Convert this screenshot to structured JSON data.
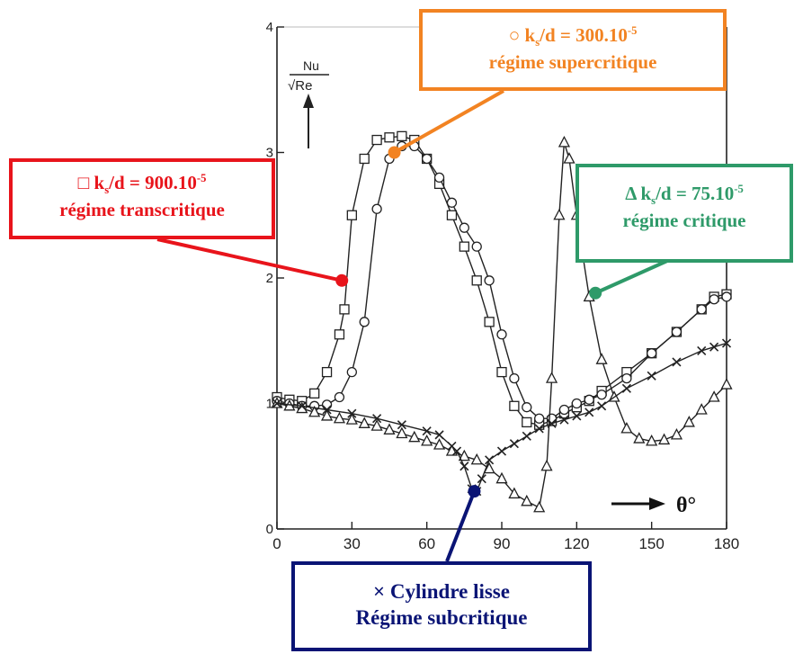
{
  "chart_data": {
    "type": "line",
    "ylabel_num": "Nu",
    "ylabel_den": "√Re",
    "xlabel": "θ°",
    "xlim": [
      0,
      180
    ],
    "ylim": [
      0,
      4
    ],
    "x_ticks": [
      "0",
      "30",
      "60",
      "90",
      "120",
      "150",
      "180"
    ],
    "y_ticks": [
      "0",
      "1",
      "2",
      "3",
      "4"
    ],
    "series": [
      {
        "marker": "square",
        "x": [
          0,
          5,
          10,
          15,
          20,
          25,
          27,
          30,
          35,
          40,
          45,
          50,
          55,
          60,
          65,
          70,
          75,
          80,
          85,
          90,
          95,
          100,
          105,
          110,
          115,
          120,
          125,
          130,
          140,
          150,
          160,
          170,
          175,
          180
        ],
        "values": [
          1.05,
          1.03,
          1.02,
          1.08,
          1.25,
          1.55,
          1.75,
          2.5,
          2.95,
          3.1,
          3.12,
          3.13,
          3.1,
          2.95,
          2.75,
          2.5,
          2.25,
          1.98,
          1.65,
          1.25,
          0.98,
          0.85,
          0.83,
          0.86,
          0.92,
          0.97,
          1.02,
          1.1,
          1.25,
          1.4,
          1.57,
          1.75,
          1.85,
          1.87
        ]
      },
      {
        "marker": "circle",
        "x": [
          0,
          5,
          10,
          15,
          20,
          25,
          30,
          35,
          40,
          45,
          50,
          55,
          60,
          65,
          70,
          75,
          80,
          85,
          90,
          95,
          100,
          105,
          110,
          115,
          120,
          125,
          130,
          140,
          150,
          160,
          170,
          175,
          180
        ],
        "values": [
          1.02,
          1.0,
          0.98,
          0.98,
          0.99,
          1.05,
          1.25,
          1.65,
          2.55,
          2.95,
          3.05,
          3.05,
          2.95,
          2.8,
          2.6,
          2.4,
          2.25,
          1.98,
          1.55,
          1.2,
          0.97,
          0.88,
          0.88,
          0.95,
          1.0,
          1.03,
          1.07,
          1.2,
          1.4,
          1.57,
          1.75,
          1.83,
          1.85
        ]
      },
      {
        "marker": "triangle",
        "x": [
          0,
          5,
          10,
          15,
          20,
          25,
          30,
          35,
          40,
          45,
          50,
          55,
          60,
          65,
          70,
          75,
          80,
          85,
          90,
          95,
          100,
          105,
          108,
          110,
          113,
          115,
          117,
          120,
          125,
          130,
          135,
          140,
          145,
          150,
          155,
          160,
          165,
          170,
          175,
          180
        ],
        "values": [
          1.0,
          0.98,
          0.96,
          0.93,
          0.9,
          0.88,
          0.87,
          0.84,
          0.82,
          0.79,
          0.76,
          0.73,
          0.7,
          0.67,
          0.62,
          0.58,
          0.55,
          0.48,
          0.4,
          0.28,
          0.22,
          0.17,
          0.5,
          1.2,
          2.5,
          3.08,
          2.95,
          2.5,
          1.85,
          1.35,
          1.05,
          0.8,
          0.72,
          0.7,
          0.71,
          0.75,
          0.85,
          0.95,
          1.05,
          1.15
        ]
      },
      {
        "marker": "cross",
        "x": [
          0,
          10,
          20,
          30,
          40,
          50,
          60,
          65,
          70,
          72,
          75,
          78,
          80,
          82,
          85,
          90,
          95,
          100,
          105,
          110,
          115,
          120,
          125,
          130,
          140,
          150,
          160,
          170,
          175,
          180
        ],
        "values": [
          1.0,
          0.98,
          0.95,
          0.92,
          0.88,
          0.83,
          0.78,
          0.75,
          0.66,
          0.62,
          0.5,
          0.32,
          0.3,
          0.4,
          0.55,
          0.62,
          0.68,
          0.74,
          0.8,
          0.84,
          0.87,
          0.9,
          0.93,
          0.98,
          1.12,
          1.22,
          1.33,
          1.42,
          1.45,
          1.48
        ]
      }
    ]
  },
  "callouts": {
    "red": {
      "symbol": "□",
      "ratio": "k",
      "sub": "s",
      "eq": "/d = 900.10",
      "sup": "-5",
      "regime": "régime transcritique",
      "color": "#e8141b"
    },
    "orange": {
      "symbol": "○",
      "ratio": "k",
      "sub": "s",
      "eq": "/d = 300.10",
      "sup": "-5",
      "regime": "régime supercritique",
      "color": "#f28322"
    },
    "green": {
      "symbol": "Δ",
      "ratio": "k",
      "sub": "s",
      "eq": "/d = 75.10",
      "sup": "-5",
      "regime": "régime critique",
      "color": "#2e9a69"
    },
    "blue": {
      "line1": "× Cylindre lisse",
      "line2": "Régime subcritique",
      "color": "#0a1475"
    }
  }
}
